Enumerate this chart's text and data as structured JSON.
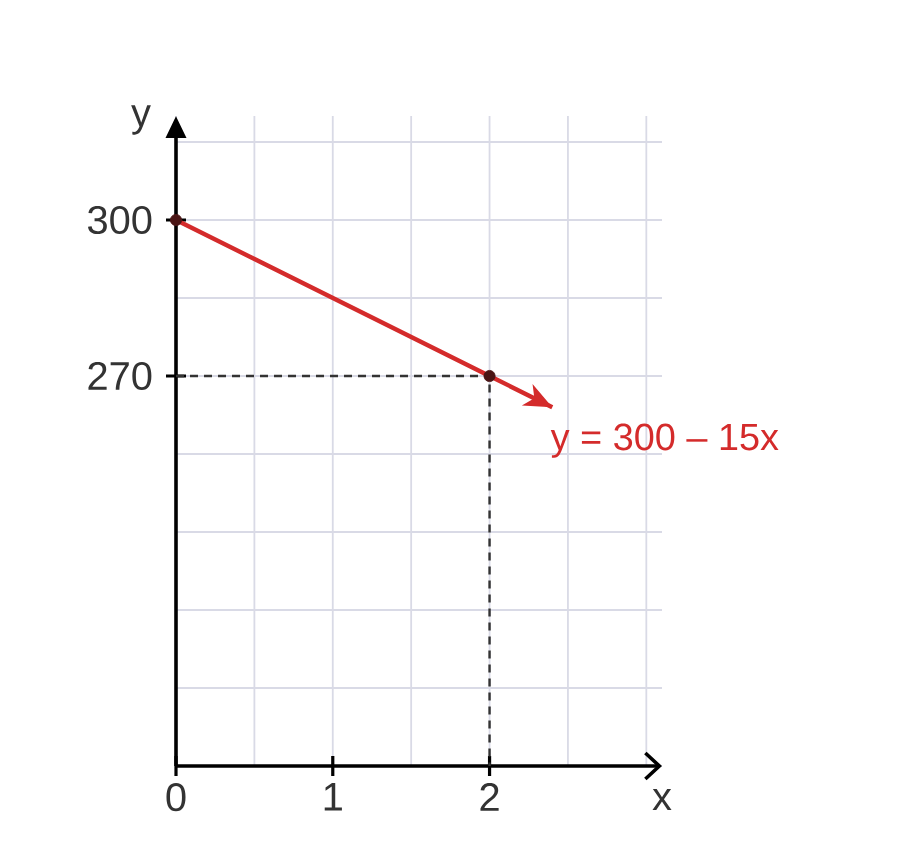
{
  "chart_data": {
    "type": "line",
    "xlabel": "x",
    "ylabel": "y",
    "xlim": [
      0,
      3.1
    ],
    "ylim": [
      195,
      320
    ],
    "xticks": [
      0,
      1,
      2
    ],
    "yticks": [
      270,
      300
    ],
    "grid": true,
    "series": [
      {
        "color": "#d42b2b",
        "line_style": "solid",
        "x": [
          0,
          2,
          2.4
        ],
        "values": [
          300,
          270,
          264
        ]
      },
      {
        "color": "#333333",
        "line_style": "dashed",
        "x": [
          0,
          2,
          2
        ],
        "values": [
          270,
          270,
          195
        ]
      },
      {
        "type": "scatter",
        "color": "#4a1515",
        "marker": "circle",
        "x": [
          0,
          2
        ],
        "values": [
          300,
          270
        ]
      }
    ],
    "annotations": [
      {
        "text": "y = 300 – 15x",
        "x": 2.4,
        "y": 264
      }
    ]
  }
}
